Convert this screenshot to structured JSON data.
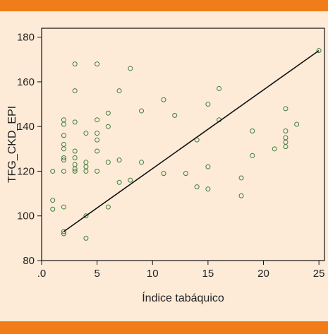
{
  "chart_data": {
    "type": "scatter",
    "xlabel": "Índice tabáquico",
    "ylabel": "TFG_CKD_EPI",
    "xlim": [
      0,
      25.5
    ],
    "ylim": [
      80,
      184
    ],
    "x_ticks": [
      0,
      5,
      10,
      15,
      20,
      25
    ],
    "x_tick_labels": [
      ".0",
      "5",
      "10",
      "15",
      "20",
      "25"
    ],
    "y_ticks": [
      80,
      100,
      120,
      140,
      160,
      180
    ],
    "y_tick_labels": [
      "80",
      "100",
      "120",
      "140",
      "160",
      "180"
    ],
    "grid": false,
    "colors": {
      "points": "#3a7d3a",
      "line": "#111111",
      "background": "#fdebd8",
      "bars": "#f07d1a"
    },
    "points": [
      {
        "x": 1,
        "y": 120
      },
      {
        "x": 1,
        "y": 107
      },
      {
        "x": 1,
        "y": 103
      },
      {
        "x": 2,
        "y": 143
      },
      {
        "x": 2,
        "y": 141
      },
      {
        "x": 2,
        "y": 136
      },
      {
        "x": 2,
        "y": 132
      },
      {
        "x": 2,
        "y": 130
      },
      {
        "x": 2,
        "y": 126
      },
      {
        "x": 2,
        "y": 125
      },
      {
        "x": 2,
        "y": 120
      },
      {
        "x": 2,
        "y": 104
      },
      {
        "x": 2,
        "y": 93
      },
      {
        "x": 2,
        "y": 92
      },
      {
        "x": 3,
        "y": 168
      },
      {
        "x": 3,
        "y": 156
      },
      {
        "x": 3,
        "y": 142
      },
      {
        "x": 3,
        "y": 129
      },
      {
        "x": 3,
        "y": 126
      },
      {
        "x": 3,
        "y": 123
      },
      {
        "x": 3,
        "y": 121
      },
      {
        "x": 3,
        "y": 120
      },
      {
        "x": 4,
        "y": 137
      },
      {
        "x": 4,
        "y": 124
      },
      {
        "x": 4,
        "y": 122
      },
      {
        "x": 4,
        "y": 120
      },
      {
        "x": 4,
        "y": 100
      },
      {
        "x": 4,
        "y": 90
      },
      {
        "x": 5,
        "y": 168
      },
      {
        "x": 5,
        "y": 143
      },
      {
        "x": 5,
        "y": 137
      },
      {
        "x": 5,
        "y": 134
      },
      {
        "x": 5,
        "y": 129
      },
      {
        "x": 5,
        "y": 120
      },
      {
        "x": 6,
        "y": 146
      },
      {
        "x": 6,
        "y": 140
      },
      {
        "x": 6,
        "y": 124
      },
      {
        "x": 6,
        "y": 104
      },
      {
        "x": 7,
        "y": 156
      },
      {
        "x": 7,
        "y": 125
      },
      {
        "x": 7,
        "y": 115
      },
      {
        "x": 8,
        "y": 166
      },
      {
        "x": 8,
        "y": 116
      },
      {
        "x": 9,
        "y": 147
      },
      {
        "x": 9,
        "y": 124
      },
      {
        "x": 11,
        "y": 152
      },
      {
        "x": 11,
        "y": 119
      },
      {
        "x": 12,
        "y": 145
      },
      {
        "x": 13,
        "y": 119
      },
      {
        "x": 14,
        "y": 134
      },
      {
        "x": 14,
        "y": 113
      },
      {
        "x": 15,
        "y": 150
      },
      {
        "x": 15,
        "y": 122
      },
      {
        "x": 15,
        "y": 112
      },
      {
        "x": 16,
        "y": 157
      },
      {
        "x": 16,
        "y": 143
      },
      {
        "x": 18,
        "y": 117
      },
      {
        "x": 18,
        "y": 109
      },
      {
        "x": 19,
        "y": 138
      },
      {
        "x": 19,
        "y": 127
      },
      {
        "x": 21,
        "y": 130
      },
      {
        "x": 22,
        "y": 148
      },
      {
        "x": 22,
        "y": 138
      },
      {
        "x": 22,
        "y": 135
      },
      {
        "x": 22,
        "y": 133
      },
      {
        "x": 22,
        "y": 131
      },
      {
        "x": 23,
        "y": 141
      },
      {
        "x": 25,
        "y": 174
      }
    ],
    "fit_line": {
      "x": [
        2,
        25
      ],
      "y": [
        93,
        174
      ]
    }
  }
}
